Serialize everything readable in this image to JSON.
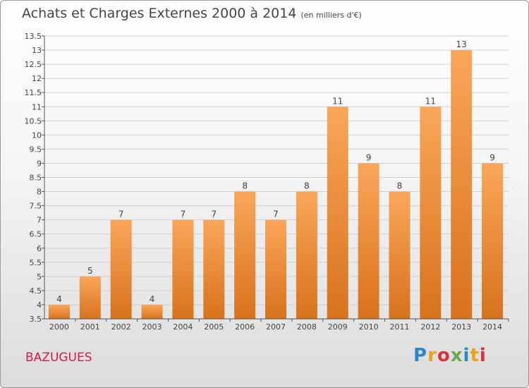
{
  "title": "Achats et Charges Externes 2000 à 2014",
  "subtitle": "(en milliers d'€)",
  "commune": "BAZUGUES",
  "logo": {
    "text": "Proxiti",
    "letters": [
      {
        "ch": "P",
        "color": "#2b88c8"
      },
      {
        "ch": "r",
        "color": "#e8a21a"
      },
      {
        "ch": "o",
        "color": "#d8323a"
      },
      {
        "ch": "x",
        "color": "#6aa84f"
      },
      {
        "ch": "i",
        "color": "#2b88c8"
      },
      {
        "ch": "t",
        "color": "#e8a21a"
      },
      {
        "ch": "i",
        "color": "#d8323a"
      }
    ]
  },
  "colors": {
    "bar_light": "#f9a65a",
    "bar_dark": "#d8721d",
    "axis": "#555555",
    "grid": "#d0d0d0",
    "text": "#444444"
  },
  "chart_data": {
    "type": "bar",
    "categories": [
      "2000",
      "2001",
      "2002",
      "2003",
      "2004",
      "2005",
      "2006",
      "2007",
      "2008",
      "2009",
      "2010",
      "2011",
      "2012",
      "2013",
      "2014"
    ],
    "values": [
      4,
      5,
      7,
      4,
      7,
      7,
      8,
      7,
      8,
      11,
      9,
      8,
      11,
      13,
      9
    ],
    "ylim": [
      3.5,
      13.5
    ],
    "yticks": [
      "3.5",
      "4",
      "4.5",
      "5",
      "5.5",
      "6",
      "6.5",
      "7",
      "7.5",
      "8",
      "8.5",
      "9",
      "9.5",
      "10",
      "10.5",
      "11",
      "11.5",
      "12",
      "12.5",
      "13",
      "13.5"
    ],
    "grid": true,
    "legend": "none",
    "xlabel": "",
    "ylabel": ""
  }
}
